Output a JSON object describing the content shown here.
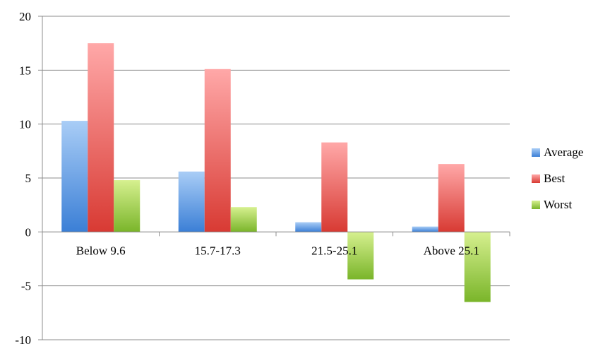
{
  "chart_data": {
    "type": "bar",
    "categories": [
      "Below 9.6",
      "15.7-17.3",
      "21.5-25.1",
      "Above 25.1"
    ],
    "series": [
      {
        "name": "Average",
        "values": [
          10.3,
          5.6,
          0.9,
          0.5
        ]
      },
      {
        "name": "Best",
        "values": [
          17.5,
          15.1,
          8.3,
          6.3
        ]
      },
      {
        "name": "Worst",
        "values": [
          4.8,
          2.3,
          -4.4,
          -6.5
        ]
      }
    ],
    "ylim": [
      -10,
      20
    ],
    "yticks": [
      20,
      15,
      10,
      5,
      0,
      -5,
      -10
    ],
    "grid": true,
    "legend_position": "right",
    "colors": {
      "Average": {
        "top": "#a9cdf6",
        "bottom": "#3b7fd6"
      },
      "Best": {
        "top": "#ffa8a8",
        "bottom": "#d83a33"
      },
      "Worst": {
        "top": "#d6f08f",
        "bottom": "#7ab52a"
      }
    }
  }
}
